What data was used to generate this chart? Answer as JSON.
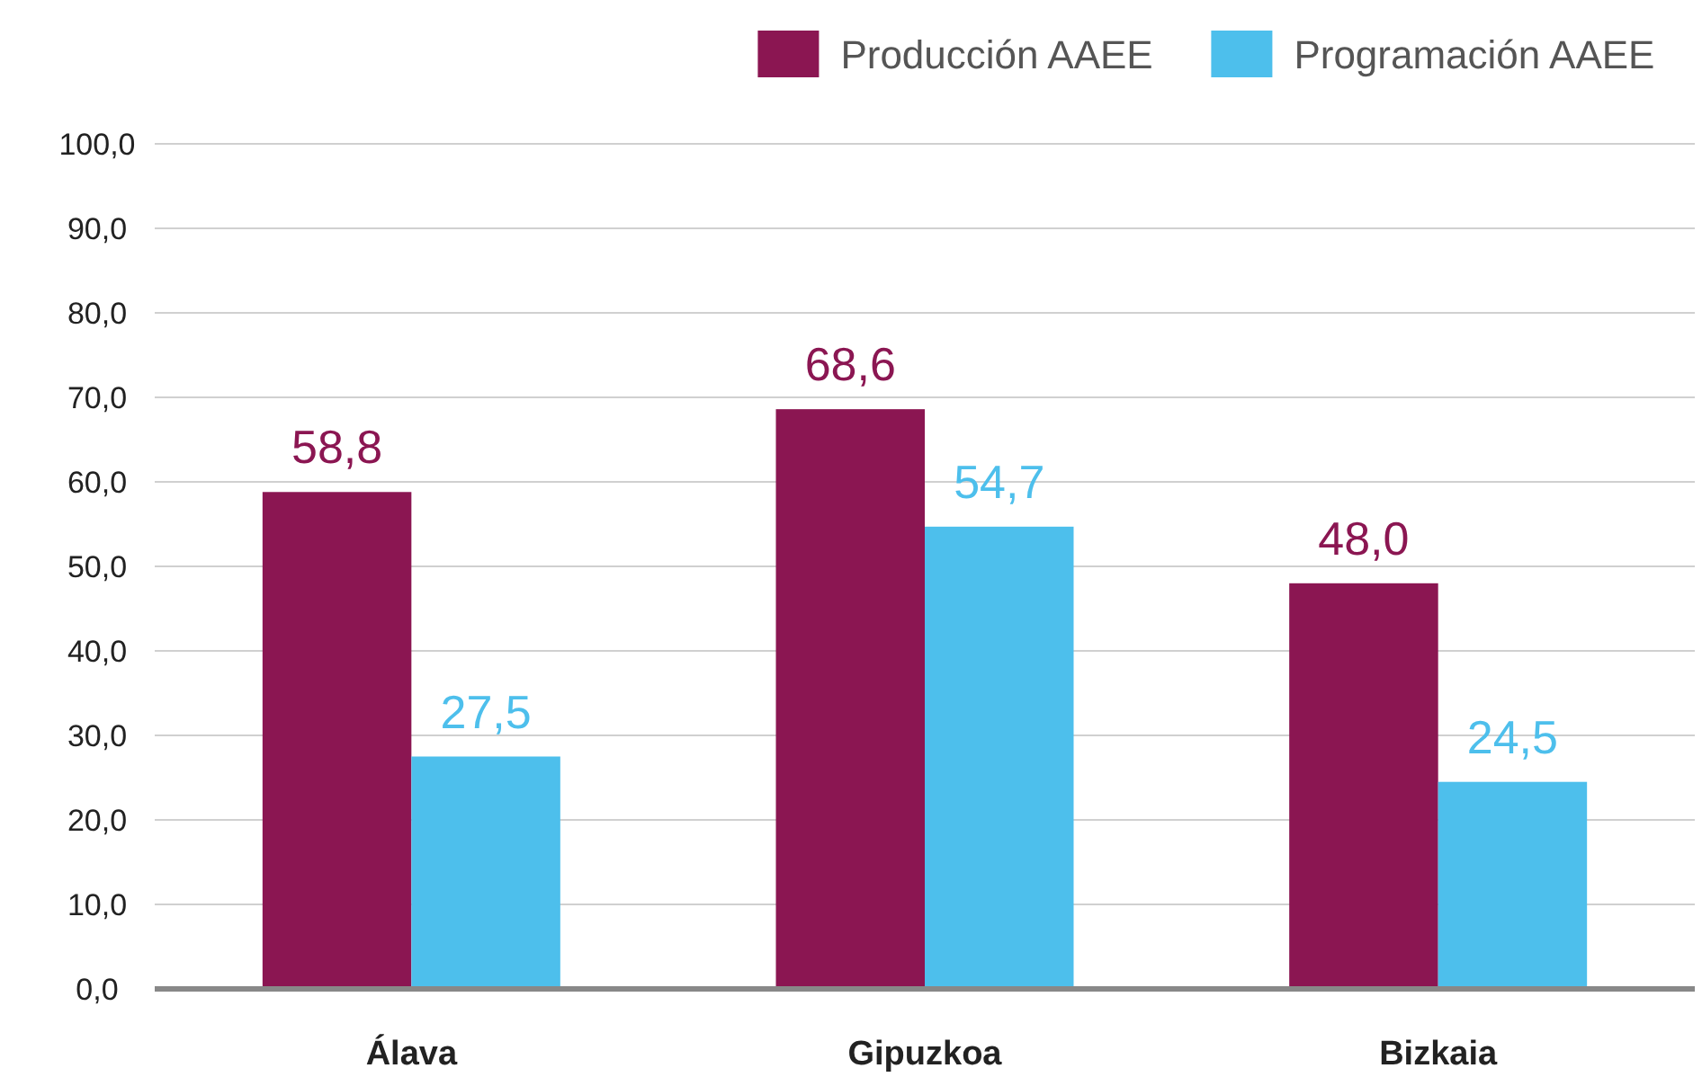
{
  "chart_data": {
    "type": "bar",
    "categories": [
      "Álava",
      "Gipuzkoa",
      "Bizkaia"
    ],
    "series": [
      {
        "name": "Producción AAEE",
        "color": "#8b1652",
        "values": [
          58.8,
          68.6,
          48.0
        ],
        "value_labels": [
          "58,8",
          "68,6",
          "48,0"
        ]
      },
      {
        "name": "Programación AAEE",
        "color": "#4dbfec",
        "values": [
          27.5,
          54.7,
          24.5
        ],
        "value_labels": [
          "27,5",
          "54,7",
          "24,5"
        ]
      }
    ],
    "ylim": [
      0,
      100
    ],
    "yticks": [
      {
        "value": 0,
        "label": "0,0"
      },
      {
        "value": 10,
        "label": "10,0"
      },
      {
        "value": 20,
        "label": "20,0"
      },
      {
        "value": 30,
        "label": "30,0"
      },
      {
        "value": 40,
        "label": "40,0"
      },
      {
        "value": 50,
        "label": "50,0"
      },
      {
        "value": 60,
        "label": "60,0"
      },
      {
        "value": 70,
        "label": "70,0"
      },
      {
        "value": 80,
        "label": "80,0"
      },
      {
        "value": 90,
        "label": "90,0"
      },
      {
        "value": 100,
        "label": "100,0"
      }
    ],
    "grid": "y",
    "legend": "top right"
  }
}
